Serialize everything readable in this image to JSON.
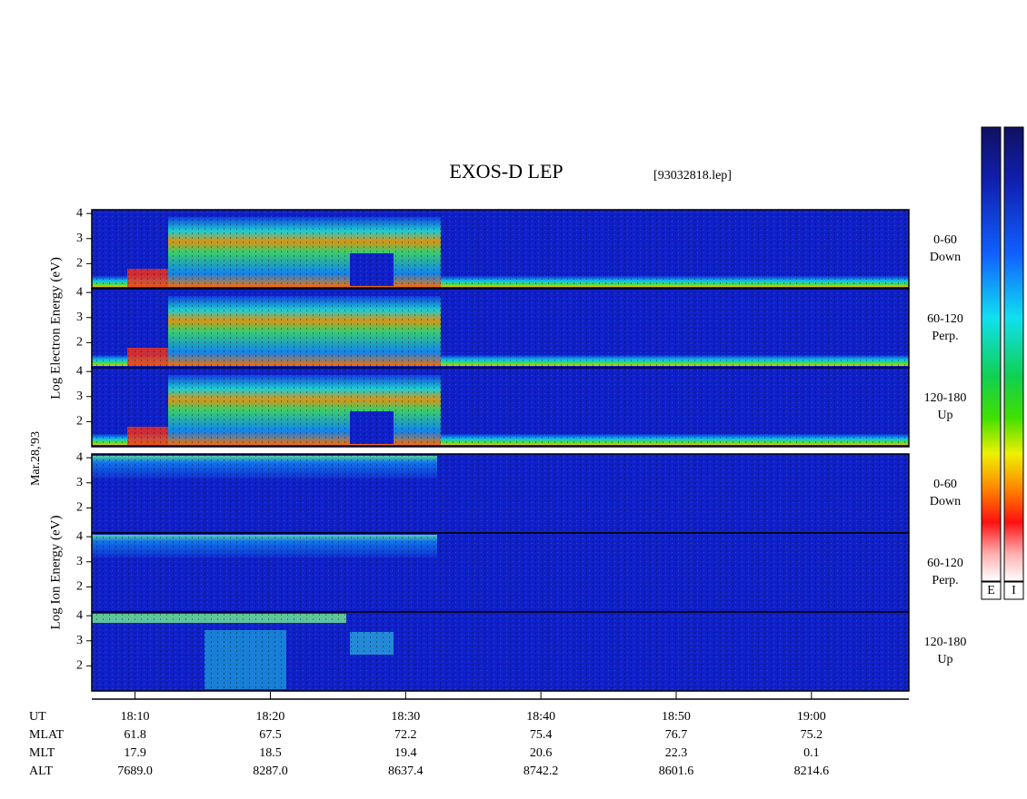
{
  "chart_data": {
    "type": "spectrogram",
    "title": "EXOS-D LEP",
    "subtitle": "[93032818.lep]",
    "date": "Mar.28,'93",
    "groups": [
      {
        "ylabel": "Log Electron Energy (eV)",
        "panels": [
          {
            "angle": "0-60",
            "direction": "Down"
          },
          {
            "angle": "60-120",
            "direction": "Perp."
          },
          {
            "angle": "120-180",
            "direction": "Up"
          }
        ]
      },
      {
        "ylabel": "Log Ion Energy (eV)",
        "panels": [
          {
            "angle": "0-60",
            "direction": "Down"
          },
          {
            "angle": "60-120",
            "direction": "Perp."
          },
          {
            "angle": "120-180",
            "direction": "Up"
          }
        ]
      }
    ],
    "ylim": [
      1,
      4.15
    ],
    "yticks": [
      2,
      3,
      4
    ],
    "xlim": [
      1086.8,
      1147.2
    ],
    "xticks": [
      {
        "value": 1090,
        "label": "18:10"
      },
      {
        "value": 1100,
        "label": "18:20"
      },
      {
        "value": 1110,
        "label": "18:30"
      },
      {
        "value": 1120,
        "label": "18:40"
      },
      {
        "value": 1130,
        "label": "18:50"
      },
      {
        "value": 1140,
        "label": "19:00"
      }
    ],
    "xlabel": "UT",
    "ephemeris": [
      {
        "name": "MLAT",
        "values": [
          "61.8",
          "67.5",
          "72.2",
          "75.4",
          "76.7",
          "75.2"
        ]
      },
      {
        "name": "MLT",
        "values": [
          "17.9",
          "18.5",
          "19.4",
          "20.6",
          "22.3",
          "0.1"
        ]
      },
      {
        "name": "ALT",
        "values": [
          "7689.0",
          "8287.0",
          "8637.4",
          "8742.2",
          "8601.6",
          "8214.6"
        ]
      }
    ],
    "colorbars": [
      "E",
      "I"
    ]
  }
}
